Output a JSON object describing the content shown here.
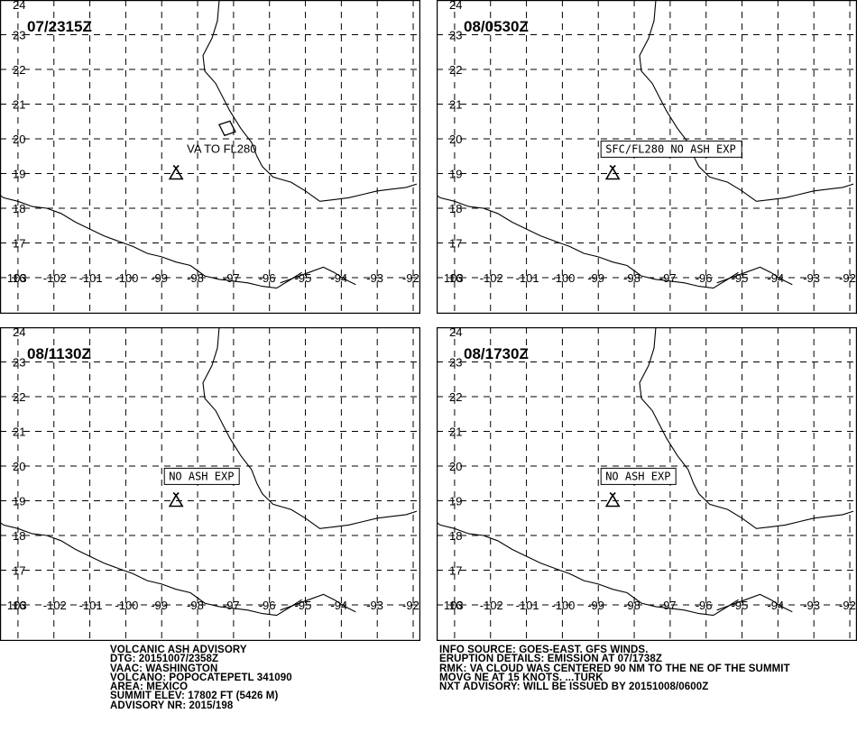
{
  "panels": [
    {
      "title": "07/2315Z",
      "label": "VA TO FL280",
      "boxed": false,
      "ash_cloud": true
    },
    {
      "title": "08/0530Z",
      "label": "SFC/FL280 NO ASH EXP",
      "boxed": true,
      "ash_cloud": false
    },
    {
      "title": "08/1130Z",
      "label": "NO ASH EXP",
      "boxed": true,
      "ash_cloud": false
    },
    {
      "title": "08/1730Z",
      "label": "NO ASH EXP",
      "boxed": true,
      "ash_cloud": false
    }
  ],
  "map": {
    "lon_range": [
      -103.5,
      -91.8
    ],
    "lat_range": [
      16,
      24
    ],
    "lon_ticks": [
      "103",
      "-102",
      "-101",
      "-100",
      "-99",
      "-98",
      "-97",
      "-96",
      "-95",
      "-94",
      "-93",
      "-92"
    ],
    "lat_ticks": [
      "16",
      "17",
      "18",
      "19",
      "20",
      "21",
      "22",
      "23",
      "24"
    ],
    "volcano": {
      "lon": -98.6,
      "lat": 19.0,
      "name": "POPOCATEPETL"
    }
  },
  "advisory_left": [
    "VOLCANIC ASH ADVISORY",
    "DTG: 20151007/2358Z",
    "VAAC: WASHINGTON",
    "VOLCANO: POPOCATEPETL 341090",
    "AREA: MEXICO",
    "SUMMIT ELEV: 17802 FT (5426 M)",
    "ADVISORY NR: 2015/198"
  ],
  "advisory_right": [
    "INFO SOURCE: GOES-EAST. GFS WINDS.",
    "ERUPTION DETAILS: EMISSION AT 07/1738Z",
    "RMK: VA CLOUD WAS CENTERED 90 NM TO THE NE OF THE SUMMIT",
    "MOVG NE AT 15 KNOTS. ...TURK",
    "NXT ADVISORY: WILL BE ISSUED BY 20151008/0600Z"
  ]
}
